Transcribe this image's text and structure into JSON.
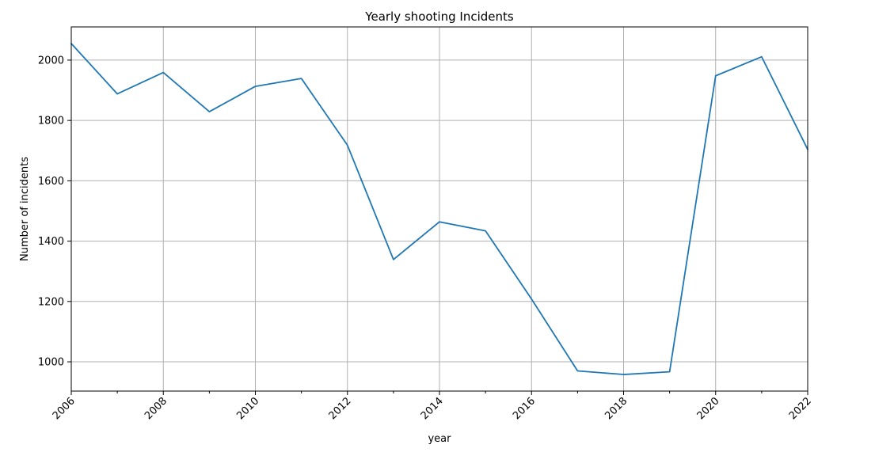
{
  "chart_data": {
    "type": "line",
    "title": "Yearly shooting Incidents",
    "xlabel": "year",
    "ylabel": "Number of incidents",
    "x": [
      2006,
      2007,
      2008,
      2009,
      2010,
      2011,
      2012,
      2013,
      2014,
      2015,
      2016,
      2017,
      2018,
      2019,
      2020,
      2021,
      2022
    ],
    "series": [
      {
        "values": [
          2055,
          1888,
          1959,
          1829,
          1913,
          1939,
          1718,
          1339,
          1464,
          1434,
          1208,
          970,
          958,
          967,
          1948,
          2011,
          1704
        ],
        "color": "#1f77b4"
      }
    ],
    "xlim": [
      2006,
      2022
    ],
    "ylim": [
      903,
      2110
    ],
    "xticks_major": [
      2006,
      2008,
      2010,
      2012,
      2014,
      2016,
      2018,
      2020,
      2022
    ],
    "xticks_minor": [
      2007,
      2009,
      2011,
      2013,
      2015,
      2017,
      2019,
      2021
    ],
    "yticks": [
      1000,
      1200,
      1400,
      1600,
      1800,
      2000
    ],
    "grid": true,
    "legend": "none"
  }
}
